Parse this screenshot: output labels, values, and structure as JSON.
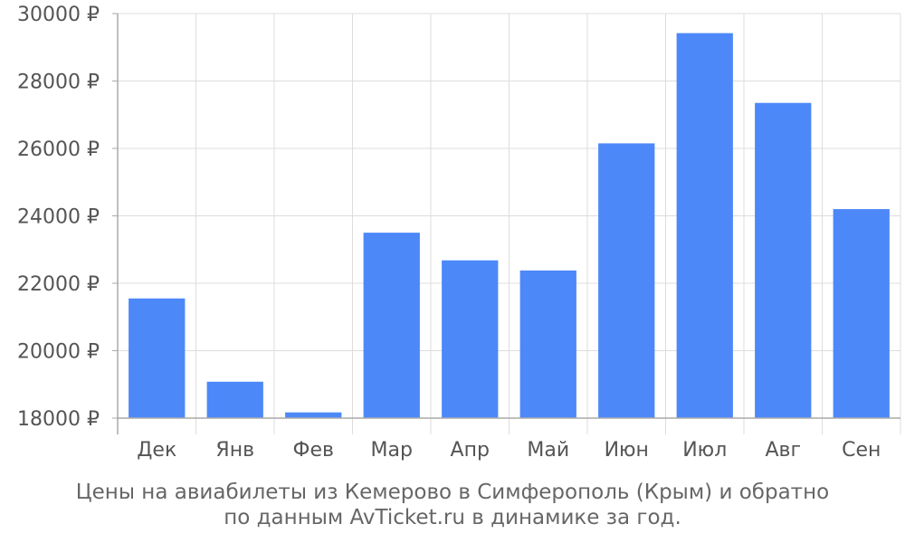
{
  "chart_data": {
    "type": "bar",
    "categories": [
      "Дек",
      "Янв",
      "Фев",
      "Мар",
      "Апр",
      "Май",
      "Июн",
      "Июл",
      "Авг",
      "Сен"
    ],
    "values": [
      21550,
      19080,
      18170,
      23500,
      22680,
      22380,
      26150,
      29420,
      27350,
      24200
    ],
    "ylim": [
      18000,
      30000
    ],
    "yticks": [
      {
        "value": 18000,
        "label": "18000 ₽"
      },
      {
        "value": 20000,
        "label": "20000 ₽"
      },
      {
        "value": 22000,
        "label": "22000 ₽"
      },
      {
        "value": 24000,
        "label": "24000 ₽"
      },
      {
        "value": 26000,
        "label": "26000 ₽"
      },
      {
        "value": 28000,
        "label": "28000 ₽"
      },
      {
        "value": 30000,
        "label": "30000 ₽"
      }
    ],
    "grid": true,
    "bar_color": "#4d88f9",
    "caption_line1": "Цены на авиабилеты из Кемерово в Симферополь (Крым) и обратно",
    "caption_line2": "по данным AvTicket.ru в динамике за год."
  }
}
